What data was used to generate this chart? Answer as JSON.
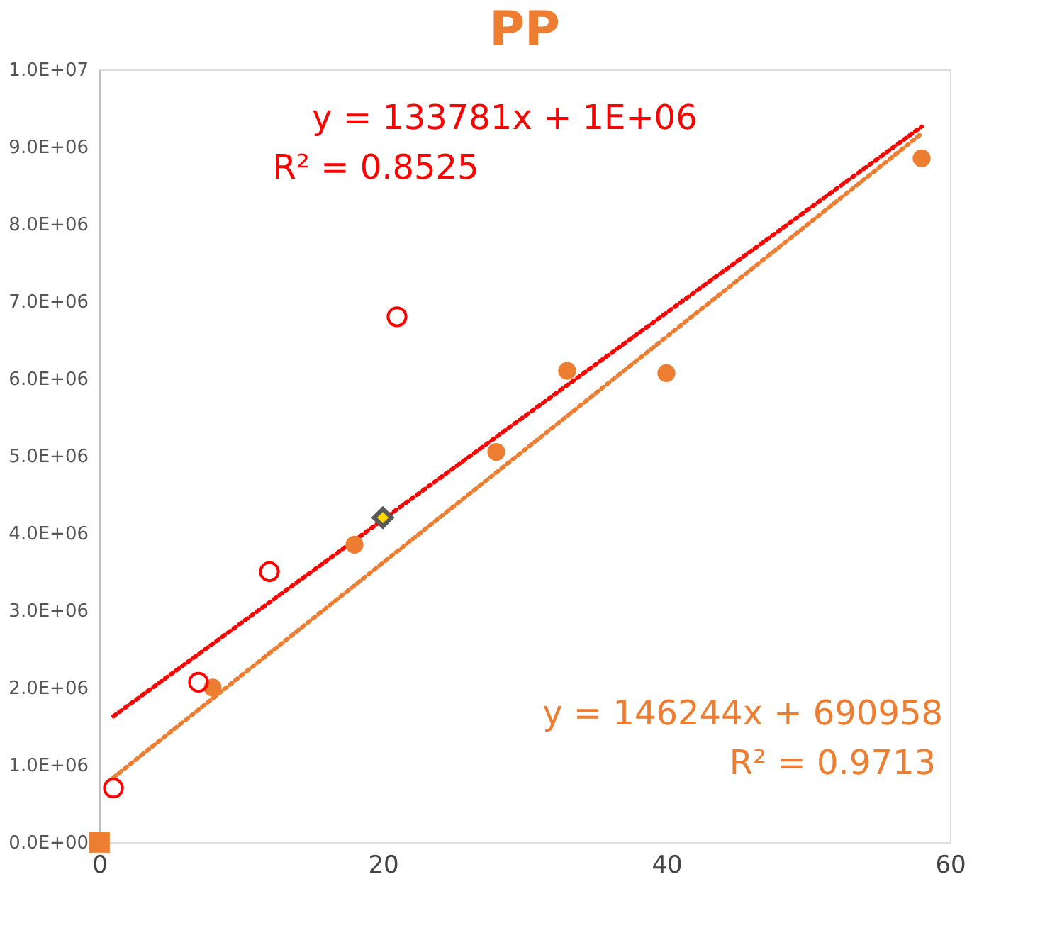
{
  "chart_data": {
    "type": "scatter",
    "title": "PP",
    "xlim": [
      0,
      60
    ],
    "xticks": [
      0,
      20,
      40,
      60
    ],
    "ylim": [
      0,
      10000000
    ],
    "yticks": [
      {
        "value": 0,
        "label": "0.0E+00"
      },
      {
        "value": 1000000,
        "label": "1.0E+06"
      },
      {
        "value": 2000000,
        "label": "2.0E+06"
      },
      {
        "value": 3000000,
        "label": "3.0E+06"
      },
      {
        "value": 4000000,
        "label": "4.0E+06"
      },
      {
        "value": 5000000,
        "label": "5.0E+06"
      },
      {
        "value": 6000000,
        "label": "6.0E+06"
      },
      {
        "value": 7000000,
        "label": "7.0E+06"
      },
      {
        "value": 8000000,
        "label": "8.0E+06"
      },
      {
        "value": 9000000,
        "label": "9.0E+06"
      },
      {
        "value": 10000000,
        "label": "1.0E+07"
      }
    ],
    "grid": false,
    "series": [
      {
        "type": "scatter",
        "marker": "circle",
        "color": "#ed7d31",
        "x": [
          8,
          18,
          28,
          33,
          40,
          58
        ],
        "values": [
          2000000,
          3850000,
          5050000,
          6100000,
          6070000,
          8850000
        ]
      },
      {
        "type": "scatter",
        "marker": "circle",
        "color": "#ff0000",
        "x": [
          1,
          7,
          12,
          21
        ],
        "values": [
          700000,
          2070000,
          3500000,
          6800000
        ]
      },
      {
        "type": "scatter",
        "marker": "square",
        "color": "#ed7d31",
        "x": [
          0
        ],
        "values": [
          0
        ]
      },
      {
        "type": "scatter",
        "marker": "diamond",
        "color": "#ffd700",
        "x": [
          20
        ],
        "values": [
          4200000
        ]
      },
      {
        "type": "line",
        "line_style": "dotted",
        "color": "#ff0000",
        "x": [
          1,
          58
        ],
        "values": [
          1630000,
          9260000
        ]
      },
      {
        "type": "line",
        "line_style": "dotted",
        "color": "#ed7d31",
        "x": [
          1,
          58
        ],
        "values": [
          837000,
          9170000
        ]
      }
    ],
    "annotations": [
      "y = 133781x + 1E+06",
      "R² = 0.8525",
      "y = 146244x + 690958",
      "R² = 0.9713"
    ]
  }
}
